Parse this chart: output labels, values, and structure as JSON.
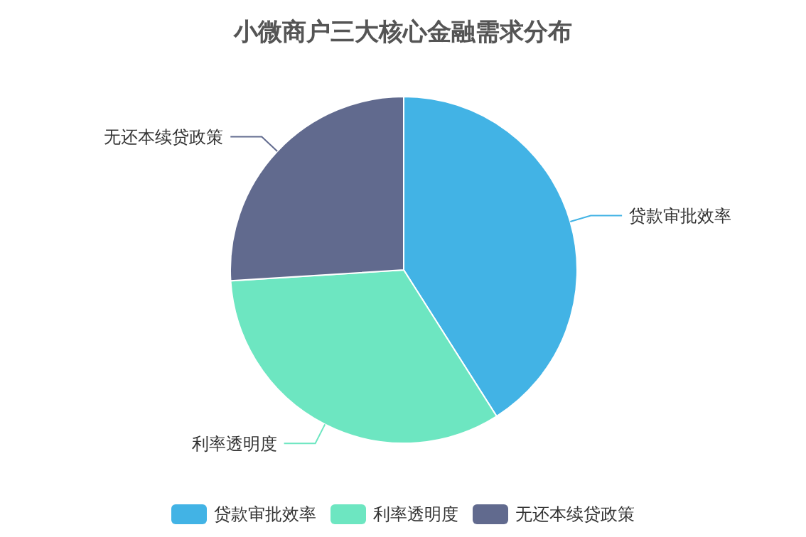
{
  "chart_data": {
    "type": "pie",
    "title": "小微商户三大核心金融需求分布",
    "categories": [
      "贷款审批效率",
      "利率透明度",
      "无还本续贷政策"
    ],
    "values": [
      41,
      33,
      26
    ],
    "colors": [
      "#42b3e5",
      "#6de6c1",
      "#616a8e"
    ],
    "legend": "bottom"
  }
}
